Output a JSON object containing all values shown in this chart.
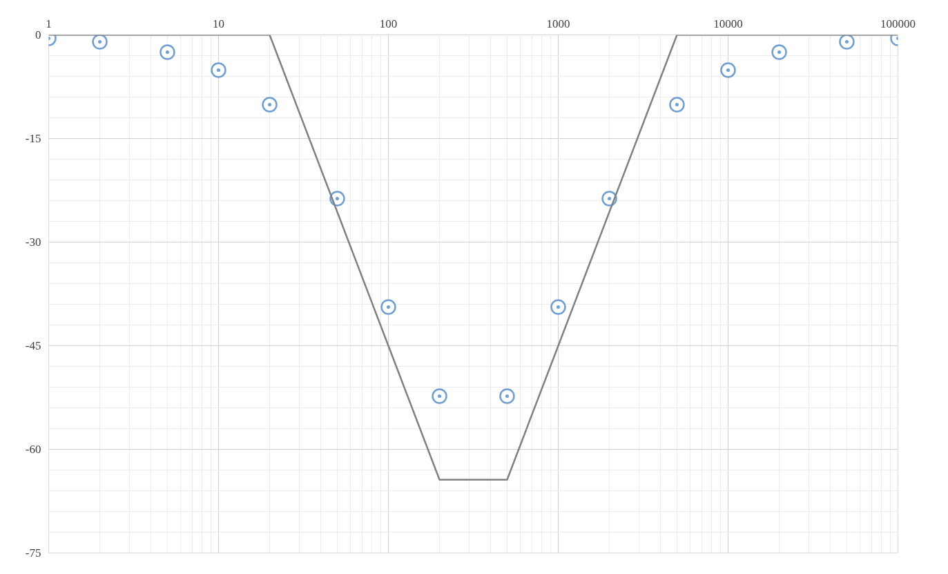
{
  "chart_data": {
    "type": "scatter",
    "log": "x",
    "grid": true,
    "xlim": [
      1,
      100000
    ],
    "xticks": [
      1,
      10,
      100,
      1000,
      10000,
      100000
    ],
    "ylim": [
      -75,
      0
    ],
    "yticks": [
      0,
      -15,
      -30,
      -45,
      -60,
      -75
    ],
    "series": [
      {
        "type": "line",
        "color": "#808080",
        "line_style": "solid",
        "x": [
          1,
          20,
          200,
          500,
          5000,
          100000
        ],
        "values": [
          0,
          0,
          -64.4,
          -64.4,
          0,
          0
        ]
      },
      {
        "color": "#6f9fd0",
        "marker": "circle",
        "x": [
          1,
          2,
          5,
          10,
          20,
          50,
          100,
          200,
          500,
          1000,
          2000,
          5000,
          10000,
          20000,
          50000,
          100000
        ],
        "values": [
          -0.5,
          -1.0,
          -2.5,
          -5.1,
          -10.1,
          -23.7,
          -39.4,
          -52.3,
          -52.3,
          -39.4,
          -23.7,
          -10.1,
          -5.1,
          -2.5,
          -1.0,
          -0.5
        ]
      }
    ]
  }
}
